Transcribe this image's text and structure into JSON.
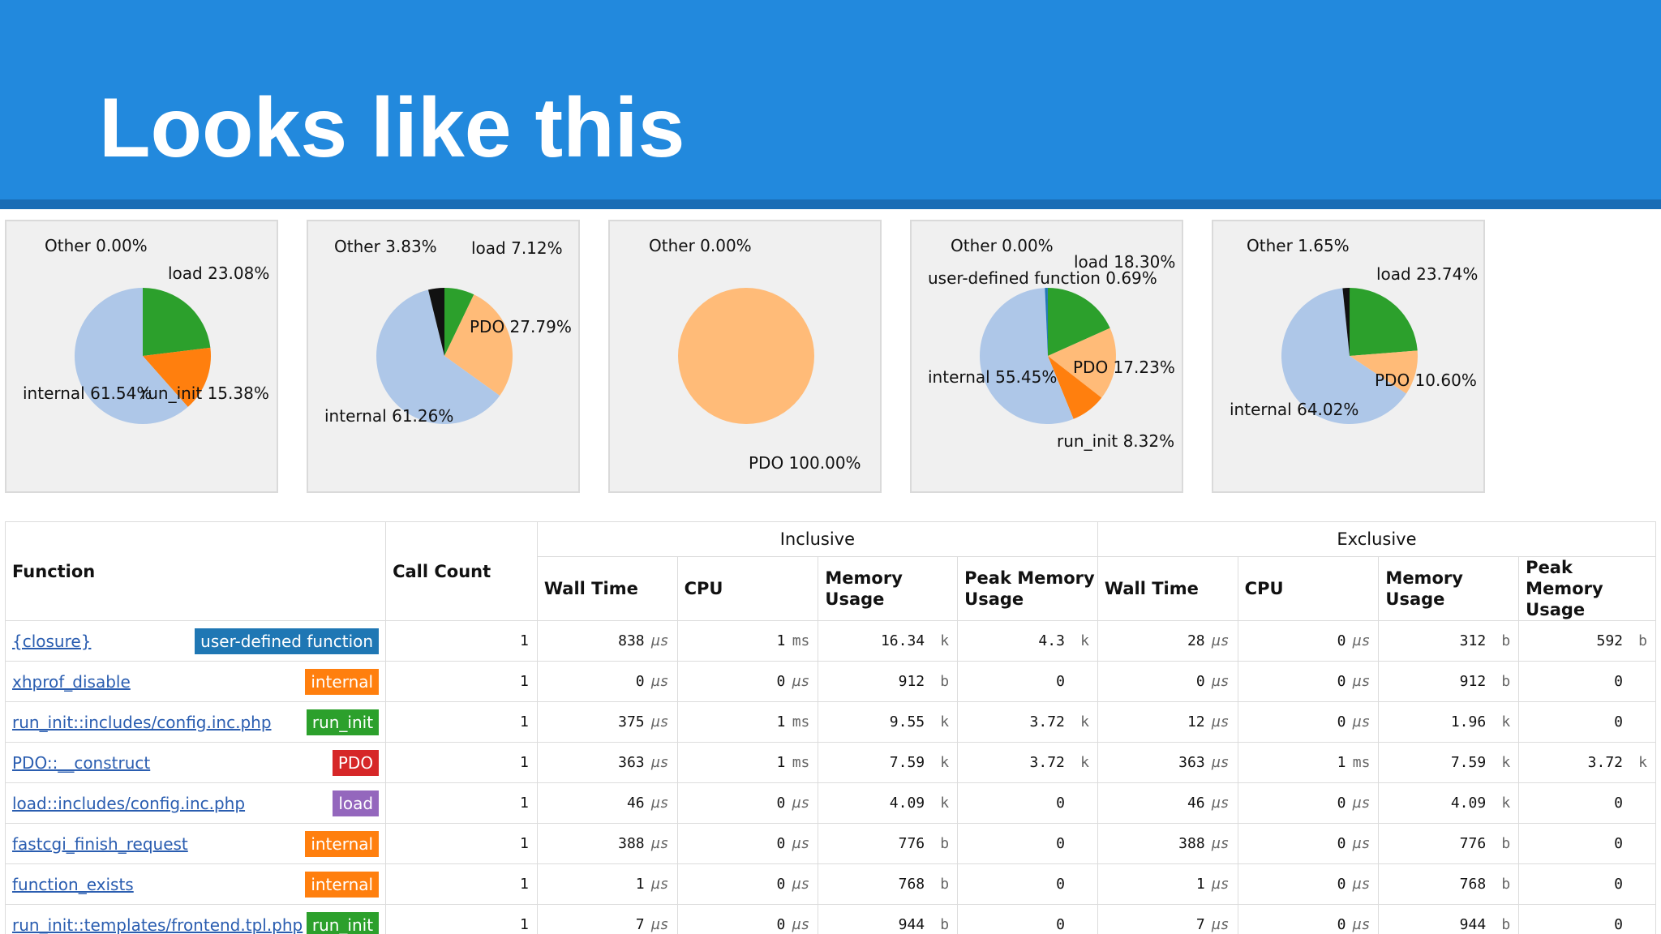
{
  "slide": {
    "title": "Looks like this"
  },
  "colors": {
    "header": "#2289dd",
    "internal": "#aec7e8",
    "load": "#2ca02c",
    "run_init": "#ff7f0e",
    "pdo": "#ffbb78",
    "user_defined": "#1f77b4",
    "other": "#111111"
  },
  "pies": [
    {
      "labels": {
        "other": "Other 0.00%",
        "load": "load 23.08%",
        "internal": "internal 61.54%",
        "run_init": "run_init 15.38%"
      },
      "slices": [
        {
          "key": "load",
          "fraction": 0.2308
        },
        {
          "key": "run_init",
          "fraction": 0.1538
        },
        {
          "key": "internal",
          "fraction": 0.6154
        }
      ]
    },
    {
      "labels": {
        "other": "Other 3.83%",
        "load": "load 7.12%",
        "pdo": "PDO 27.79%",
        "internal": "internal 61.26%"
      },
      "slices": [
        {
          "key": "load",
          "fraction": 0.0712
        },
        {
          "key": "pdo",
          "fraction": 0.2779
        },
        {
          "key": "internal",
          "fraction": 0.6126
        },
        {
          "key": "other",
          "fraction": 0.0383
        }
      ]
    },
    {
      "labels": {
        "other": "Other 0.00%",
        "pdo": "PDO 100.00%"
      },
      "slices": [
        {
          "key": "pdo",
          "fraction": 1.0
        }
      ]
    },
    {
      "labels": {
        "other": "Other 0.00%",
        "load": "load 18.30%",
        "user_defined": "user-defined function 0.69%",
        "internal": "internal 55.45%",
        "pdo": "PDO 17.23%",
        "run_init": "run_init 8.32%"
      },
      "slices": [
        {
          "key": "load",
          "fraction": 0.183
        },
        {
          "key": "pdo",
          "fraction": 0.1723
        },
        {
          "key": "run_init",
          "fraction": 0.0832
        },
        {
          "key": "internal",
          "fraction": 0.5545
        },
        {
          "key": "user_defined",
          "fraction": 0.0069
        }
      ]
    },
    {
      "labels": {
        "other": "Other 1.65%",
        "load": "load 23.74%",
        "pdo": "PDO 10.60%",
        "internal": "internal 64.02%"
      },
      "slices": [
        {
          "key": "load",
          "fraction": 0.2374
        },
        {
          "key": "pdo",
          "fraction": 0.106
        },
        {
          "key": "internal",
          "fraction": 0.6402
        },
        {
          "key": "other",
          "fraction": 0.0165
        }
      ]
    }
  ],
  "table": {
    "headers": {
      "function": "Function",
      "call_count": "Call Count",
      "inclusive": "Inclusive",
      "exclusive": "Exclusive",
      "wall_time": "Wall Time",
      "cpu": "CPU",
      "memory_usage": "Memory Usage",
      "peak_memory_usage": "Peak Memory Usage"
    },
    "rows": [
      {
        "name": "{closure}",
        "badge": "user-defined function",
        "badge_key": "user_defined",
        "calls": "1",
        "inc": [
          [
            "838",
            "µs"
          ],
          [
            "1",
            "ms"
          ],
          [
            "16.34",
            "k"
          ],
          [
            "4.3",
            "k"
          ]
        ],
        "exc": [
          [
            "28",
            "µs"
          ],
          [
            "0",
            "µs"
          ],
          [
            "312",
            "b"
          ],
          [
            "592",
            "b"
          ]
        ]
      },
      {
        "name": "xhprof_disable",
        "badge": "internal",
        "badge_key": "internal",
        "calls": "1",
        "inc": [
          [
            "0",
            "µs"
          ],
          [
            "0",
            "µs"
          ],
          [
            "912",
            "b"
          ],
          [
            "0",
            ""
          ]
        ],
        "exc": [
          [
            "0",
            "µs"
          ],
          [
            "0",
            "µs"
          ],
          [
            "912",
            "b"
          ],
          [
            "0",
            ""
          ]
        ]
      },
      {
        "name": "run_init::includes/config.inc.php",
        "badge": "run_init",
        "badge_key": "run_init",
        "calls": "1",
        "inc": [
          [
            "375",
            "µs"
          ],
          [
            "1",
            "ms"
          ],
          [
            "9.55",
            "k"
          ],
          [
            "3.72",
            "k"
          ]
        ],
        "exc": [
          [
            "12",
            "µs"
          ],
          [
            "0",
            "µs"
          ],
          [
            "1.96",
            "k"
          ],
          [
            "0",
            ""
          ]
        ]
      },
      {
        "name": "PDO::__construct",
        "badge": "PDO",
        "badge_key": "pdo",
        "calls": "1",
        "inc": [
          [
            "363",
            "µs"
          ],
          [
            "1",
            "ms"
          ],
          [
            "7.59",
            "k"
          ],
          [
            "3.72",
            "k"
          ]
        ],
        "exc": [
          [
            "363",
            "µs"
          ],
          [
            "1",
            "ms"
          ],
          [
            "7.59",
            "k"
          ],
          [
            "3.72",
            "k"
          ]
        ]
      },
      {
        "name": "load::includes/config.inc.php",
        "badge": "load",
        "badge_key": "load",
        "calls": "1",
        "inc": [
          [
            "46",
            "µs"
          ],
          [
            "0",
            "µs"
          ],
          [
            "4.09",
            "k"
          ],
          [
            "0",
            ""
          ]
        ],
        "exc": [
          [
            "46",
            "µs"
          ],
          [
            "0",
            "µs"
          ],
          [
            "4.09",
            "k"
          ],
          [
            "0",
            ""
          ]
        ]
      },
      {
        "name": "fastcgi_finish_request",
        "badge": "internal",
        "badge_key": "internal",
        "calls": "1",
        "inc": [
          [
            "388",
            "µs"
          ],
          [
            "0",
            "µs"
          ],
          [
            "776",
            "b"
          ],
          [
            "0",
            ""
          ]
        ],
        "exc": [
          [
            "388",
            "µs"
          ],
          [
            "0",
            "µs"
          ],
          [
            "776",
            "b"
          ],
          [
            "0",
            ""
          ]
        ]
      },
      {
        "name": "function_exists",
        "badge": "internal",
        "badge_key": "internal",
        "calls": "1",
        "inc": [
          [
            "1",
            "µs"
          ],
          [
            "0",
            "µs"
          ],
          [
            "768",
            "b"
          ],
          [
            "0",
            ""
          ]
        ],
        "exc": [
          [
            "1",
            "µs"
          ],
          [
            "0",
            "µs"
          ],
          [
            "768",
            "b"
          ],
          [
            "0",
            ""
          ]
        ]
      },
      {
        "name": "run_init::templates/frontend.tpl.php",
        "badge": "run_init",
        "badge_key": "run_init",
        "calls": "1",
        "inc": [
          [
            "7",
            "µs"
          ],
          [
            "0",
            "µs"
          ],
          [
            "944",
            "b"
          ],
          [
            "0",
            ""
          ]
        ],
        "exc": [
          [
            "7",
            "µs"
          ],
          [
            "0",
            "µs"
          ],
          [
            "944",
            "b"
          ],
          [
            "0",
            ""
          ]
        ]
      }
    ]
  }
}
